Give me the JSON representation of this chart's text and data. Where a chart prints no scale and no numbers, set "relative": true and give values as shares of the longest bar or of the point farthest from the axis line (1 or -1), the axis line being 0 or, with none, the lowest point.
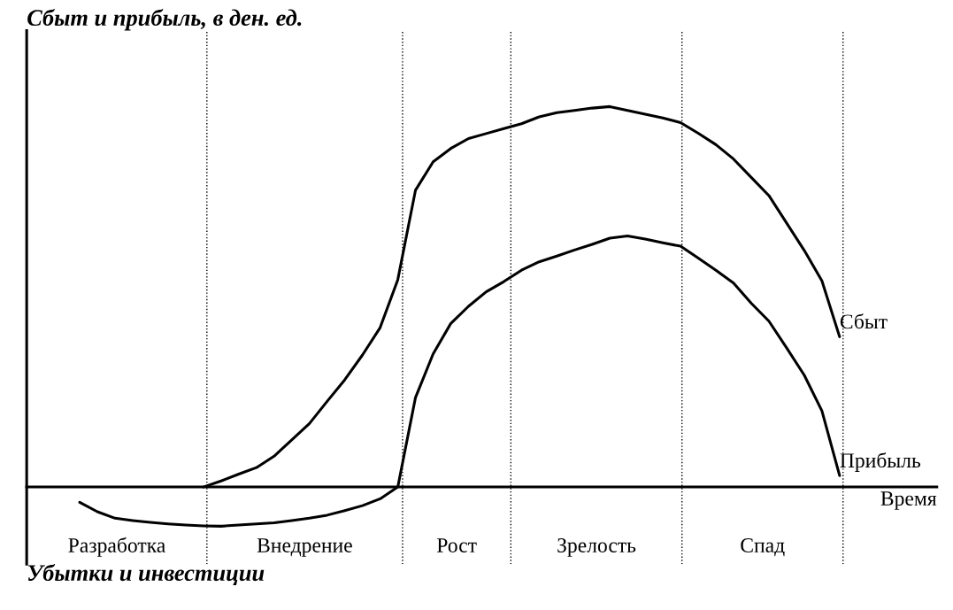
{
  "chart_data": {
    "type": "line",
    "relative": true,
    "ylabel": "Сбыт и прибыль, в ден. ед.",
    "xlabel": "Время",
    "legend": false,
    "marker": "none",
    "line_style": "solid",
    "categories": [
      null,
      null,
      null,
      null,
      null,
      null,
      null,
      null,
      null,
      null,
      null,
      null,
      null,
      null,
      null,
      null,
      null,
      null,
      null,
      null,
      null,
      null,
      null,
      null,
      null,
      null,
      null,
      null,
      null,
      null,
      null,
      null,
      null,
      null,
      null,
      null,
      null,
      null,
      null,
      null,
      null,
      null,
      null,
      null,
      null,
      null,
      null,
      null,
      null,
      null,
      null,
      null
    ],
    "series": [
      {
        "name": "Сбыт",
        "color": "#000000",
        "values": [
          null,
          null,
          null,
          null,
          null,
          null,
          null,
          null,
          null,
          null,
          0,
          0.016,
          0.034,
          0.051,
          0.081,
          0.124,
          0.167,
          0.225,
          0.282,
          0.347,
          0.419,
          0.545,
          0.78,
          0.855,
          0.89,
          0.916,
          0.929,
          0.942,
          0.955,
          0.973,
          0.984,
          0.99,
          0.996,
          1.0,
          0.99,
          0.98,
          0.97,
          0.958,
          0.93,
          0.9,
          0.862,
          0.814,
          0.766,
          0.694,
          0.622,
          0.542,
          0.395,
          null,
          null,
          null,
          null,
          null
        ]
      },
      {
        "name": "Прибыль",
        "color": "#000000",
        "values": [
          null,
          null,
          null,
          -0.04,
          -0.065,
          -0.082,
          -0.088,
          -0.093,
          -0.097,
          -0.1,
          -0.102,
          -0.103,
          -0.1,
          -0.097,
          -0.094,
          -0.088,
          -0.082,
          -0.074,
          -0.062,
          -0.049,
          -0.031,
          0,
          0.235,
          0.35,
          0.43,
          0.475,
          0.513,
          0.54,
          0.57,
          0.592,
          0.607,
          0.623,
          0.638,
          0.654,
          0.66,
          0.652,
          0.642,
          0.633,
          0.602,
          0.57,
          0.536,
          0.483,
          0.436,
          0.366,
          0.294,
          0.2,
          0.03,
          null,
          null,
          null,
          null,
          null
        ]
      }
    ],
    "grid": "x",
    "annotations": [
      "Разработка",
      "Внедрение",
      "Рост",
      "Зрелость",
      "Спад",
      "Убытки и инвестиции"
    ]
  }
}
